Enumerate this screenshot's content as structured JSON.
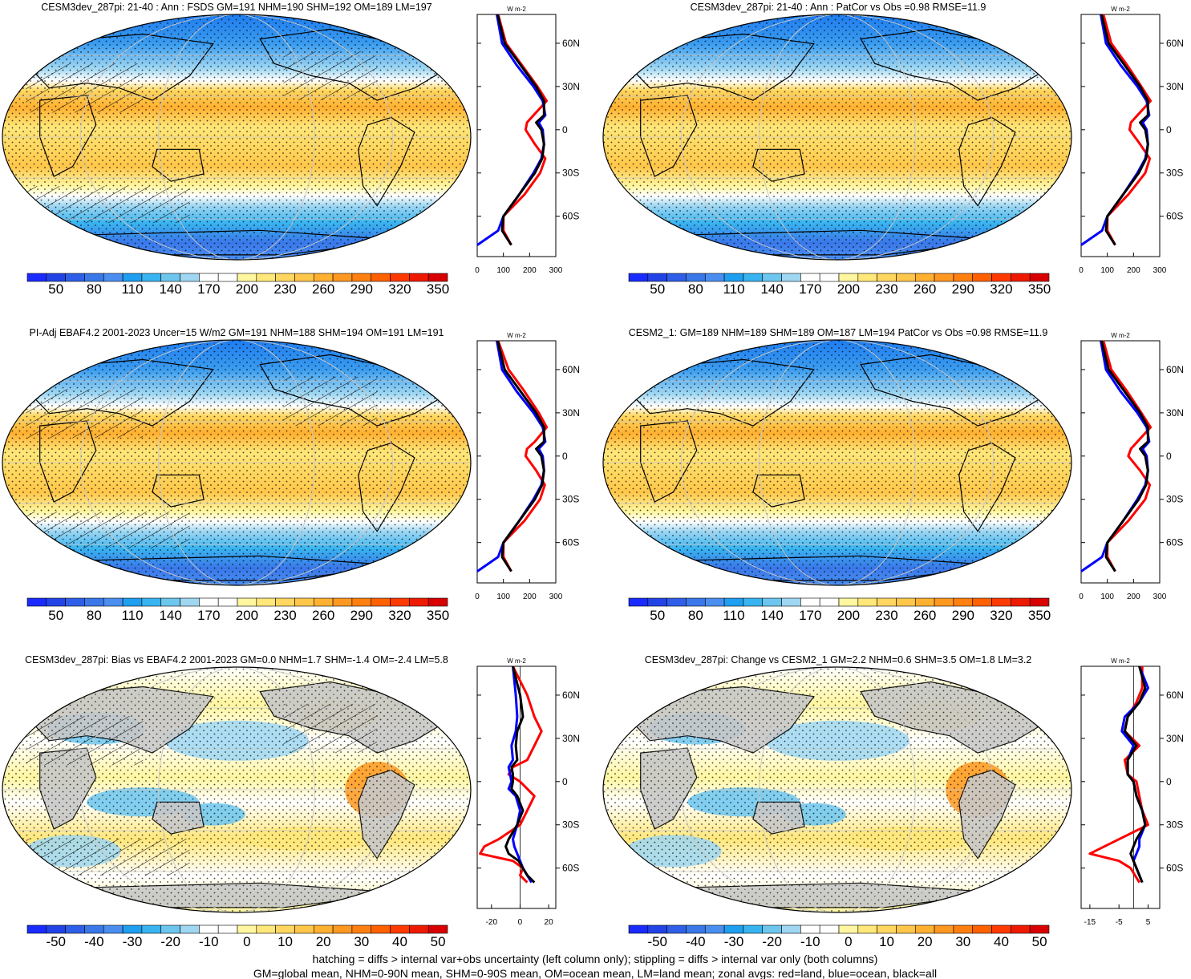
{
  "panels": [
    {
      "title": "CESM3dev_287pi: 21-40 : Ann : FSDS GM=191 NHM=190 SHM=192 OM=189 LM=197",
      "kind": "abs",
      "hatch": true
    },
    {
      "title": "CESM3dev_287pi: 21-40 : Ann : PatCor vs Obs =0.98 RMSE=11.9",
      "kind": "abs",
      "hatch": false
    },
    {
      "title": "PI-Adj EBAF4.2 2001-2023 Uncer=15 W/m2 GM=191 NHM=188 SHM=194 OM=191 LM=191",
      "kind": "abs",
      "hatch": true
    },
    {
      "title": "CESM2_1: GM=189 NHM=189 SHM=189 OM=187 LM=194 PatCor vs Obs =0.98 RMSE=11.9",
      "kind": "abs",
      "hatch": false
    },
    {
      "title": "CESM3dev_287pi: Bias vs EBAF4.2 2001-2023 GM=0.0 NHM=1.7 SHM=-1.4 OM=-2.4 LM=5.8",
      "kind": "diff",
      "hatch": true
    },
    {
      "title": "CESM3dev_287pi: Change vs CESM2_1 GM=2.2 NHM=0.6 SHM=3.5 OM=1.8 LM=3.2",
      "kind": "diff",
      "hatch": false
    }
  ],
  "colorbars": {
    "abs": {
      "labels": [
        "50",
        "80",
        "110",
        "140",
        "170",
        "200",
        "230",
        "260",
        "290",
        "320",
        "350"
      ],
      "colors": [
        "#1a2bff",
        "#2244e6",
        "#2f5fe8",
        "#3a78ea",
        "#4a8ff0",
        "#1e9ff0",
        "#39b4f0",
        "#6cc6ee",
        "#9fd7f2",
        "#ffffff",
        "#ffffff",
        "#fff6a0",
        "#ffe77a",
        "#ffd760",
        "#ffc74a",
        "#ffb030",
        "#ff9820",
        "#ff8010",
        "#ff6000",
        "#ff3a00",
        "#ee1a00",
        "#d80000"
      ]
    },
    "diff": {
      "labels": [
        "-50",
        "-40",
        "-30",
        "-20",
        "-10",
        "0",
        "10",
        "20",
        "30",
        "40",
        "50"
      ],
      "colors": [
        "#1a2bff",
        "#2244e6",
        "#2f5fe8",
        "#3a78ea",
        "#4a8ff0",
        "#1e9ff0",
        "#39b4f0",
        "#6cc6ee",
        "#9fd7f2",
        "#ffffff",
        "#ffffff",
        "#fff6a0",
        "#ffe77a",
        "#ffd760",
        "#ffc74a",
        "#ffb030",
        "#ff9820",
        "#ff8010",
        "#ff6000",
        "#ff3a00",
        "#ee1a00",
        "#d80000"
      ]
    }
  },
  "zonal": {
    "unit": "W m-2",
    "lat_ticks": [
      "60N",
      "30N",
      "0",
      "30S",
      "60S"
    ],
    "abs_xticks": [
      "0",
      "100",
      "200",
      "300"
    ],
    "diff_xticks_left": [
      "-20",
      "0",
      "20"
    ],
    "diff_xticks_right": [
      "-15",
      "-5",
      "5"
    ]
  },
  "chart_data": [
    {
      "type": "line",
      "panel": "CESM3dev_287pi: 21-40 FSDS",
      "xlim": [
        0,
        300
      ],
      "series": [
        {
          "name": "land",
          "color": "#ff0000",
          "lat": [
            80,
            60,
            45,
            30,
            20,
            10,
            5,
            0,
            -10,
            -20,
            -30,
            -45,
            -60,
            -70,
            -80
          ],
          "values": [
            80,
            110,
            170,
            230,
            265,
            215,
            190,
            185,
            220,
            260,
            240,
            180,
            100,
            100,
            130
          ]
        },
        {
          "name": "ocean",
          "color": "#0000ff",
          "lat": [
            80,
            60,
            45,
            30,
            20,
            10,
            5,
            0,
            -10,
            -20,
            -30,
            -45,
            -60,
            -70,
            -80
          ],
          "values": [
            75,
            95,
            150,
            215,
            250,
            260,
            235,
            250,
            255,
            245,
            215,
            160,
            100,
            80,
            0
          ]
        },
        {
          "name": "all",
          "color": "#000000",
          "lat": [
            80,
            60,
            45,
            30,
            20,
            10,
            5,
            0,
            -10,
            -20,
            -30,
            -45,
            -60,
            -70,
            -80
          ],
          "values": [
            78,
            105,
            165,
            225,
            255,
            255,
            225,
            245,
            255,
            248,
            220,
            160,
            100,
            95,
            130
          ]
        }
      ]
    },
    {
      "type": "line",
      "panel": "CESM3dev_287pi: 21-40 PatCor",
      "xlim": [
        0,
        300
      ],
      "series": [
        {
          "name": "land",
          "color": "#ff0000",
          "lat": [
            80,
            60,
            45,
            30,
            20,
            10,
            5,
            0,
            -10,
            -20,
            -30,
            -45,
            -60,
            -70,
            -80
          ],
          "values": [
            85,
            115,
            175,
            230,
            265,
            215,
            190,
            185,
            225,
            262,
            245,
            180,
            100,
            100,
            130
          ]
        },
        {
          "name": "ocean",
          "color": "#0000ff",
          "lat": [
            80,
            60,
            45,
            30,
            20,
            10,
            5,
            0,
            -10,
            -20,
            -30,
            -45,
            -60,
            -70,
            -80
          ],
          "values": [
            75,
            95,
            150,
            215,
            250,
            260,
            235,
            250,
            255,
            245,
            215,
            160,
            100,
            80,
            0
          ]
        },
        {
          "name": "all",
          "color": "#000000",
          "lat": [
            80,
            60,
            45,
            30,
            20,
            10,
            5,
            0,
            -10,
            -20,
            -30,
            -45,
            -60,
            -70,
            -80
          ],
          "values": [
            78,
            105,
            165,
            225,
            255,
            255,
            225,
            245,
            255,
            248,
            220,
            160,
            100,
            95,
            130
          ]
        }
      ]
    },
    {
      "type": "line",
      "panel": "PI-Adj EBAF4.2",
      "xlim": [
        0,
        300
      ],
      "series": [
        {
          "name": "land",
          "color": "#ff0000",
          "lat": [
            80,
            60,
            45,
            30,
            20,
            10,
            5,
            0,
            -10,
            -20,
            -30,
            -45,
            -60,
            -70,
            -80
          ],
          "values": [
            80,
            120,
            180,
            235,
            265,
            220,
            190,
            185,
            225,
            258,
            240,
            180,
            100,
            100,
            130
          ]
        },
        {
          "name": "ocean",
          "color": "#0000ff",
          "lat": [
            80,
            60,
            45,
            30,
            20,
            10,
            5,
            0,
            -10,
            -20,
            -30,
            -45,
            -60,
            -70,
            -80
          ],
          "values": [
            75,
            95,
            150,
            215,
            250,
            260,
            235,
            250,
            255,
            245,
            215,
            160,
            100,
            80,
            0
          ]
        },
        {
          "name": "all",
          "color": "#000000",
          "lat": [
            80,
            60,
            45,
            30,
            20,
            10,
            5,
            0,
            -10,
            -20,
            -30,
            -45,
            -60,
            -70,
            -80
          ],
          "values": [
            78,
            105,
            165,
            225,
            255,
            255,
            225,
            245,
            255,
            248,
            220,
            160,
            100,
            95,
            130
          ]
        }
      ]
    },
    {
      "type": "line",
      "panel": "CESM2_1",
      "xlim": [
        0,
        300
      ],
      "series": [
        {
          "name": "land",
          "color": "#ff0000",
          "lat": [
            80,
            60,
            45,
            30,
            20,
            10,
            5,
            0,
            -10,
            -20,
            -30,
            -45,
            -60,
            -70,
            -80
          ],
          "values": [
            85,
            115,
            175,
            230,
            265,
            215,
            190,
            180,
            225,
            262,
            245,
            180,
            100,
            100,
            130
          ]
        },
        {
          "name": "ocean",
          "color": "#0000ff",
          "lat": [
            80,
            60,
            45,
            30,
            20,
            10,
            5,
            0,
            -10,
            -20,
            -30,
            -45,
            -60,
            -70,
            -80
          ],
          "values": [
            75,
            95,
            150,
            215,
            250,
            260,
            235,
            250,
            255,
            245,
            215,
            160,
            100,
            80,
            0
          ]
        },
        {
          "name": "all",
          "color": "#000000",
          "lat": [
            80,
            60,
            45,
            30,
            20,
            10,
            5,
            0,
            -10,
            -20,
            -30,
            -45,
            -60,
            -70,
            -80
          ],
          "values": [
            78,
            105,
            165,
            225,
            255,
            255,
            225,
            245,
            255,
            248,
            220,
            160,
            100,
            95,
            130
          ]
        }
      ]
    },
    {
      "type": "line",
      "panel": "Bias vs EBAF4.2",
      "xlim": [
        -30,
        25
      ],
      "series": [
        {
          "name": "land",
          "color": "#ff0000",
          "lat": [
            80,
            60,
            45,
            35,
            25,
            15,
            10,
            5,
            0,
            -5,
            -10,
            -20,
            -30,
            -40,
            -45,
            -50,
            -55,
            -60,
            -65,
            -70
          ],
          "values": [
            -5,
            5,
            10,
            15,
            10,
            5,
            -5,
            -8,
            0,
            5,
            10,
            5,
            0,
            -15,
            -25,
            -28,
            -5,
            2,
            0,
            5
          ]
        },
        {
          "name": "ocean",
          "color": "#0000ff",
          "lat": [
            80,
            60,
            45,
            35,
            25,
            15,
            10,
            5,
            0,
            -5,
            -10,
            -20,
            -30,
            -40,
            -45,
            -50,
            -55,
            -60,
            -65,
            -70
          ],
          "values": [
            -5,
            -3,
            -2,
            -3,
            -6,
            -5,
            -8,
            -7,
            -6,
            -8,
            -3,
            0,
            -2,
            -5,
            -4,
            -2,
            0,
            2,
            5,
            8
          ]
        },
        {
          "name": "all",
          "color": "#000000",
          "lat": [
            80,
            60,
            45,
            35,
            25,
            15,
            10,
            5,
            0,
            -5,
            -10,
            -20,
            -30,
            -40,
            -45,
            -50,
            -55,
            -60,
            -65,
            -70
          ],
          "values": [
            -5,
            0,
            2,
            -2,
            -3,
            -2,
            -6,
            -5,
            -5,
            -6,
            -2,
            2,
            -2,
            -8,
            -10,
            -8,
            -1,
            2,
            5,
            10
          ]
        }
      ]
    },
    {
      "type": "line",
      "panel": "Change vs CESM2_1",
      "xlim": [
        -18,
        9
      ],
      "series": [
        {
          "name": "land",
          "color": "#ff0000",
          "lat": [
            80,
            65,
            55,
            45,
            35,
            25,
            15,
            5,
            0,
            -10,
            -20,
            -30,
            -40,
            -45,
            -50,
            -55,
            -60,
            -70
          ],
          "values": [
            3,
            3,
            1,
            -2,
            -3,
            2,
            -3,
            -2,
            1,
            2,
            3,
            5,
            -5,
            -10,
            -15,
            -5,
            -1,
            2
          ]
        },
        {
          "name": "ocean",
          "color": "#0000ff",
          "lat": [
            80,
            65,
            55,
            45,
            35,
            25,
            15,
            5,
            0,
            -10,
            -20,
            -30,
            -40,
            -45,
            -50,
            -55,
            -60,
            -70
          ],
          "values": [
            2,
            5,
            2,
            -3,
            -4,
            0,
            -2,
            -2,
            0,
            1,
            3,
            4,
            2,
            2,
            1,
            0,
            1,
            3
          ]
        },
        {
          "name": "all",
          "color": "#000000",
          "lat": [
            80,
            65,
            55,
            45,
            35,
            25,
            15,
            5,
            0,
            -10,
            -20,
            -30,
            -40,
            -45,
            -50,
            -55,
            -60,
            -70
          ],
          "values": [
            2,
            4,
            2,
            -2,
            -3,
            1,
            -2,
            -2,
            0,
            1,
            3,
            4,
            1,
            0,
            -1,
            0,
            1,
            3
          ]
        }
      ]
    }
  ],
  "footer": {
    "line1": "hatching = diffs > internal var+obs uncertainty (left column only); stippling = diffs > internal var only (both columns)",
    "line2": "GM=global mean, NHM=0-90N mean, SHM=0-90S mean, OM=ocean mean, LM=land mean; zonal avgs: red=land, blue=ocean, black=all"
  }
}
